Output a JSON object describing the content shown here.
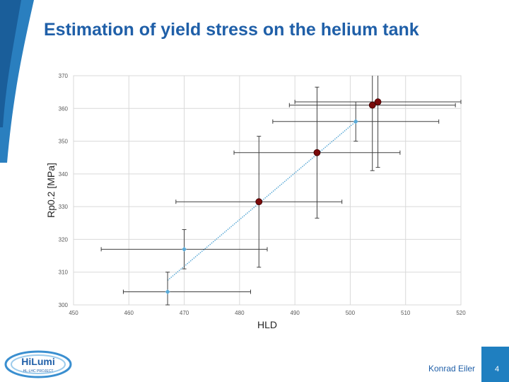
{
  "slide": {
    "title": "Estimation of yield stress on the helium tank",
    "author": "Konrad Eiler",
    "page_number": "4",
    "logo_text": "HiLumi",
    "logo_subtext": "HL-LHC PROJECT",
    "accent_color": "#1f5fa8",
    "bar_color": "#1f7fc0"
  },
  "chart_data": {
    "type": "scatter",
    "title": "",
    "xlabel": "HLD",
    "ylabel": "Rp0.2 [MPa]",
    "xlim": [
      450,
      520
    ],
    "ylim": [
      300,
      370
    ],
    "x_ticks": [
      450,
      460,
      470,
      480,
      490,
      500,
      510,
      520
    ],
    "y_ticks": [
      300,
      310,
      320,
      330,
      340,
      350,
      360,
      370
    ],
    "grid": true,
    "series": [
      {
        "marker": "small-diamond",
        "color": "#5aa9d6",
        "points": [
          {
            "x": 467,
            "y": 304,
            "xerr": [
              459,
              482
            ],
            "yerr": [
              300,
              310
            ]
          },
          {
            "x": 470,
            "y": 317,
            "xerr": [
              455,
              485
            ],
            "yerr": [
              311,
              323
            ]
          },
          {
            "x": 501,
            "y": 356,
            "xerr": [
              486,
              516
            ],
            "yerr": [
              350,
              362
            ]
          }
        ]
      },
      {
        "marker": "dark-red-circle",
        "color": "#7a0a0a",
        "points": [
          {
            "x": 483.5,
            "y": 331.5,
            "xerr": [
              468.5,
              498.5
            ],
            "yerr": [
              311.5,
              351.5
            ]
          },
          {
            "x": 494,
            "y": 346.5,
            "xerr": [
              479,
              509
            ],
            "yerr": [
              326.5,
              366.5
            ]
          },
          {
            "x": 504,
            "y": 361,
            "xerr": [
              489,
              519
            ],
            "yerr": [
              341,
              381
            ]
          },
          {
            "x": 505,
            "y": 362,
            "xerr": [
              490,
              520
            ],
            "yerr": [
              342,
              382
            ]
          }
        ]
      }
    ],
    "trendline": {
      "x": [
        467,
        501
      ],
      "y": [
        307.5,
        356
      ],
      "color": "#5aa9d6",
      "style": "dotted"
    }
  }
}
